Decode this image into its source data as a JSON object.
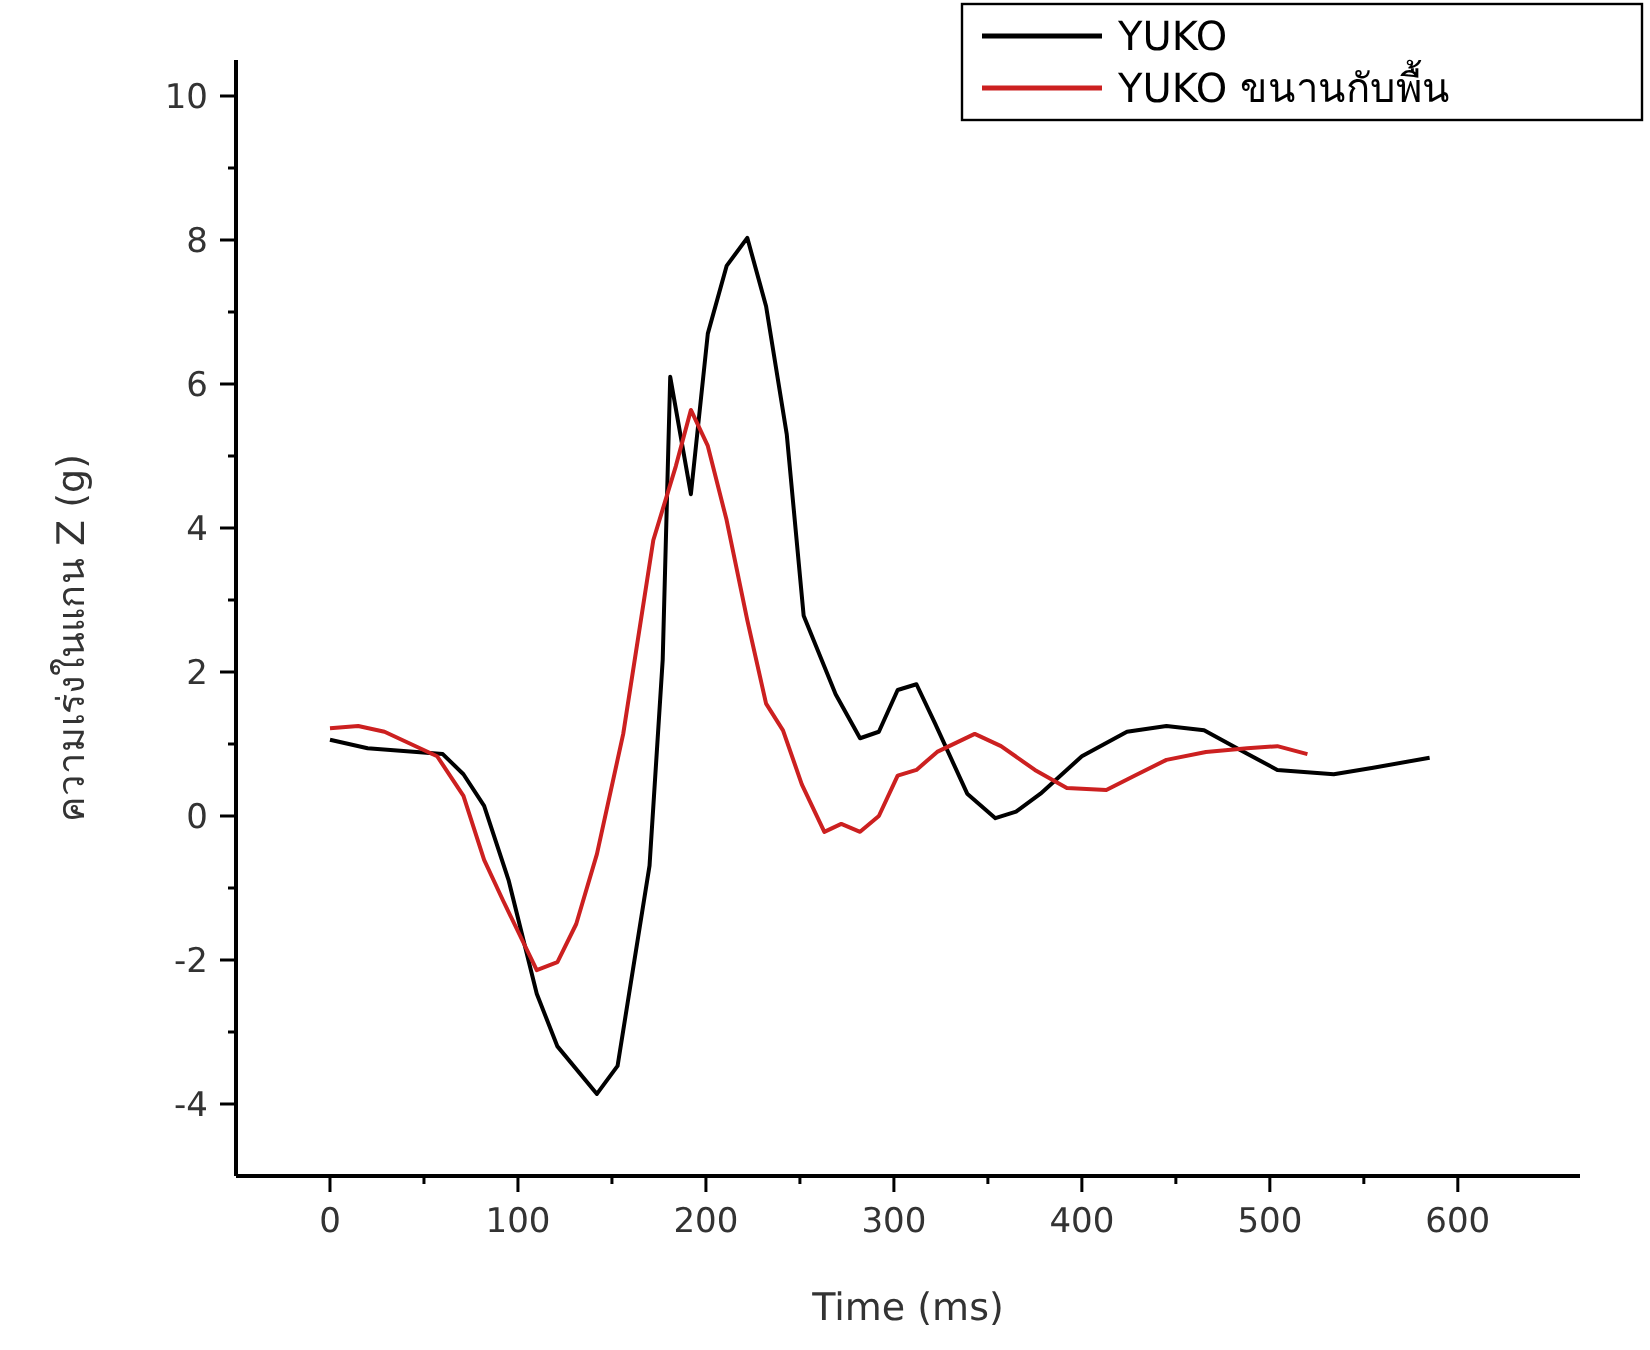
{
  "chart_data": {
    "type": "line",
    "xlabel": "Time (ms)",
    "ylabel": "ความเร่งในแกน Z (g)",
    "xlim": [
      -50,
      665
    ],
    "ylim": [
      -5,
      10.5
    ],
    "xticks": [
      0,
      100,
      200,
      300,
      400,
      500,
      600
    ],
    "yticks": [
      -4,
      -2,
      0,
      2,
      4,
      6,
      8,
      10
    ],
    "grid": false,
    "legend": "top right",
    "marker": "none",
    "line_style": "solid",
    "series": [
      {
        "name": "YUKO",
        "color": "#000000",
        "x": [
          0,
          20,
          60,
          71,
          82,
          95,
          110,
          121,
          142,
          153,
          170,
          177,
          181,
          192,
          201,
          211,
          222,
          232,
          243,
          252,
          269,
          282,
          292,
          302,
          312,
          322,
          339,
          354,
          365,
          378,
          400,
          424,
          445,
          465,
          484,
          504,
          534,
          555,
          585
        ],
        "values": [
          1.06,
          0.94,
          0.86,
          0.58,
          0.14,
          -0.89,
          -2.47,
          -3.2,
          -3.86,
          -3.47,
          -0.69,
          2.17,
          6.1,
          4.47,
          6.7,
          7.64,
          8.03,
          7.08,
          5.3,
          2.78,
          1.69,
          1.08,
          1.17,
          1.75,
          1.83,
          1.28,
          0.31,
          -0.03,
          0.06,
          0.31,
          0.83,
          1.17,
          1.25,
          1.19,
          0.92,
          0.64,
          0.58,
          0.67,
          0.81
        ]
      },
      {
        "name": "YUKO ขนานกับพื้น",
        "color": "#cc2020",
        "x": [
          0,
          15,
          29,
          57,
          71,
          82,
          92,
          110,
          121,
          131,
          142,
          156,
          172,
          184,
          192,
          201,
          211,
          222,
          232,
          241,
          251,
          263,
          272,
          282,
          292,
          302,
          312,
          323,
          343,
          357,
          375,
          392,
          413,
          428,
          445,
          466,
          488,
          504,
          520
        ],
        "values": [
          1.22,
          1.25,
          1.17,
          0.83,
          0.28,
          -0.61,
          -1.17,
          -2.14,
          -2.03,
          -1.5,
          -0.53,
          1.14,
          3.83,
          4.86,
          5.64,
          5.14,
          4.11,
          2.72,
          1.56,
          1.19,
          0.44,
          -0.22,
          -0.11,
          -0.22,
          0.0,
          0.56,
          0.64,
          0.89,
          1.14,
          0.97,
          0.64,
          0.39,
          0.36,
          0.56,
          0.78,
          0.89,
          0.94,
          0.97,
          0.86
        ]
      }
    ]
  }
}
